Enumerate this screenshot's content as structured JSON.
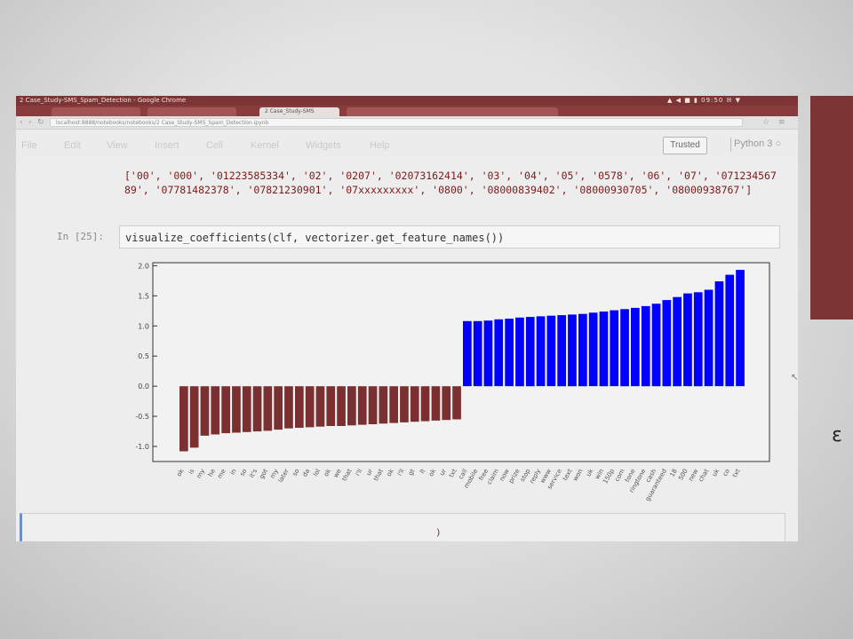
{
  "window": {
    "title": "2 Case_Study-SMS_Spam_Detection - Google Chrome",
    "tray": "▲ ◀ ■ ▮ 09:50 ✉ ▼"
  },
  "browser": {
    "tabs": [
      {
        "label": "",
        "active": false
      },
      {
        "label": "",
        "active": false
      },
      {
        "label": "2 Case_Study-SMS",
        "active": true
      },
      {
        "label": "",
        "active": false
      },
      {
        "label": "",
        "active": false
      },
      {
        "label": "",
        "active": false
      }
    ],
    "url": "localhost:8888/notebooks/notebooks/2 Case_Study-SMS_Spam_Detection.ipynb"
  },
  "menubar": {
    "items": [
      "File",
      "Edit",
      "View",
      "Insert",
      "Cell",
      "Kernel",
      "Widgets",
      "Help"
    ],
    "trusted": "Trusted",
    "kernel": "Python 3 ○"
  },
  "output": {
    "text": "['00', '000', '01223585334', '02', '0207', '02073162414', '03', '04', '05', '0578', '06', '07', '07123456789', '07781482378', '07821230901', '07xxxxxxxxx', '0800', '08000839402', '08000930705', '08000938767']"
  },
  "cell": {
    "prompt": "In [25]:",
    "code": "visualize_coefficients(clf, vectorizer.get_feature_names())"
  },
  "chart_data": {
    "type": "bar",
    "ylim": [
      -1.25,
      2.05
    ],
    "yticks": [
      "2.0",
      "1.5",
      "1.0",
      "0.5",
      "0.0",
      "-0.5",
      "-1.0"
    ],
    "colors": {
      "negative": "#7a3030",
      "positive": "#0000ff"
    },
    "categories": [
      "ok",
      "is",
      "my",
      "he",
      "me",
      "in",
      "so",
      "it's",
      "got",
      "my",
      "later",
      "so",
      "da",
      "lol",
      "ok",
      "we",
      "that",
      "i'll",
      "ur",
      "that",
      "ok",
      "i'll",
      "gt",
      "lt",
      "ok",
      "ur",
      "txt",
      "call",
      "mobile",
      "free",
      "claim",
      "now",
      "prize",
      "stop",
      "reply",
      "www",
      "service",
      "text",
      "won",
      "uk",
      "win",
      "150p",
      "com",
      "tone",
      "ringtone",
      "cash",
      "guaranteed",
      "18",
      "500",
      "new",
      "chat",
      "uk",
      "co",
      "txt"
    ],
    "values": [
      -1.08,
      -1.02,
      -0.82,
      -0.8,
      -0.78,
      -0.77,
      -0.76,
      -0.75,
      -0.74,
      -0.72,
      -0.7,
      -0.69,
      -0.68,
      -0.67,
      -0.66,
      -0.66,
      -0.65,
      -0.64,
      -0.63,
      -0.62,
      -0.61,
      -0.6,
      -0.59,
      -0.58,
      -0.57,
      -0.56,
      -0.55,
      1.08,
      1.08,
      1.09,
      1.11,
      1.12,
      1.14,
      1.15,
      1.16,
      1.17,
      1.18,
      1.19,
      1.2,
      1.22,
      1.24,
      1.26,
      1.28,
      1.3,
      1.33,
      1.37,
      1.43,
      1.48,
      1.54,
      1.56,
      1.6,
      1.74,
      1.85,
      1.93
    ]
  }
}
